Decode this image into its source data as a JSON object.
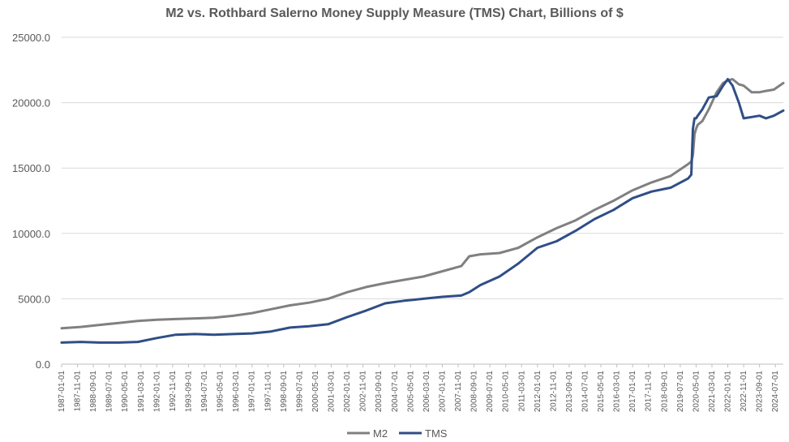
{
  "chart_data": {
    "type": "line",
    "title": "M2 vs. Rothbard Salerno Money Supply Measure (TMS) Chart, Billions of $",
    "xlabel": "",
    "ylabel": "",
    "ylim": [
      0,
      25000
    ],
    "yticks": [
      "0.0",
      "5000.0",
      "10000.0",
      "15000.0",
      "20000.0",
      "25000.0"
    ],
    "grid": true,
    "legend_position": "bottom",
    "x_tick_labels": [
      "1987-01-01",
      "1987-11-01",
      "1988-09-01",
      "1989-07-01",
      "1990-05-01",
      "1991-03-01",
      "1992-01-01",
      "1992-11-01",
      "1993-09-01",
      "1994-07-01",
      "1995-05-01",
      "1996-03-01",
      "1997-01-01",
      "1997-11-01",
      "1998-09-01",
      "1999-07-01",
      "2000-05-01",
      "2001-03-01",
      "2002-01-01",
      "2002-11-01",
      "2003-09-01",
      "2004-07-01",
      "2005-05-01",
      "2006-03-01",
      "2007-01-01",
      "2007-11-01",
      "2008-09-01",
      "2009-07-01",
      "2010-05-01",
      "2011-03-01",
      "2012-01-01",
      "2012-11-01",
      "2013-09-01",
      "2014-07-01",
      "2015-05-01",
      "2016-03-01",
      "2017-01-01",
      "2017-11-01",
      "2018-09-01",
      "2019-07-01",
      "2020-05-01",
      "2021-03-01",
      "2022-01-01",
      "2022-11-01",
      "2023-09-01",
      "2024-07-01"
    ],
    "x": [
      "1987-01",
      "1988-01",
      "1989-01",
      "1990-01",
      "1991-01",
      "1992-01",
      "1993-01",
      "1994-01",
      "1995-01",
      "1996-01",
      "1997-01",
      "1998-01",
      "1999-01",
      "2000-01",
      "2001-01",
      "2002-01",
      "2003-01",
      "2004-01",
      "2005-01",
      "2006-01",
      "2007-01",
      "2008-01",
      "2008-06",
      "2009-01",
      "2010-01",
      "2011-01",
      "2012-01",
      "2013-01",
      "2014-01",
      "2015-01",
      "2016-01",
      "2017-01",
      "2018-01",
      "2019-01",
      "2019-12",
      "2020-02",
      "2020-03",
      "2020-04",
      "2020-05",
      "2020-06",
      "2020-09",
      "2021-01",
      "2021-06",
      "2021-10",
      "2022-01",
      "2022-04",
      "2022-08",
      "2022-11",
      "2023-04",
      "2023-09",
      "2024-01",
      "2024-06",
      "2024-12"
    ],
    "series": [
      {
        "name": "M2",
        "color": "#808080",
        "values": [
          2750,
          2850,
          3000,
          3150,
          3300,
          3400,
          3450,
          3500,
          3550,
          3700,
          3900,
          4200,
          4500,
          4700,
          5000,
          5500,
          5900,
          6200,
          6450,
          6700,
          7100,
          7500,
          8250,
          8400,
          8500,
          8900,
          9700,
          10400,
          11000,
          11800,
          12500,
          13300,
          13900,
          14400,
          15300,
          15500,
          16000,
          17600,
          18000,
          18300,
          18600,
          19500,
          20800,
          21500,
          21700,
          21800,
          21400,
          21300,
          20800,
          20800,
          20900,
          21000,
          21500
        ]
      },
      {
        "name": "TMS",
        "color": "#2F4E87",
        "values": [
          1650,
          1700,
          1650,
          1650,
          1700,
          2000,
          2250,
          2300,
          2250,
          2300,
          2350,
          2500,
          2800,
          2900,
          3050,
          3600,
          4100,
          4650,
          4850,
          5000,
          5150,
          5250,
          5500,
          6050,
          6700,
          7700,
          8900,
          9400,
          10200,
          11100,
          11800,
          12700,
          13200,
          13500,
          14200,
          14500,
          18000,
          18800,
          18800,
          19000,
          19500,
          20400,
          20500,
          21300,
          21800,
          21300,
          20000,
          18800,
          18900,
          19000,
          18800,
          19000,
          19400
        ]
      }
    ]
  }
}
